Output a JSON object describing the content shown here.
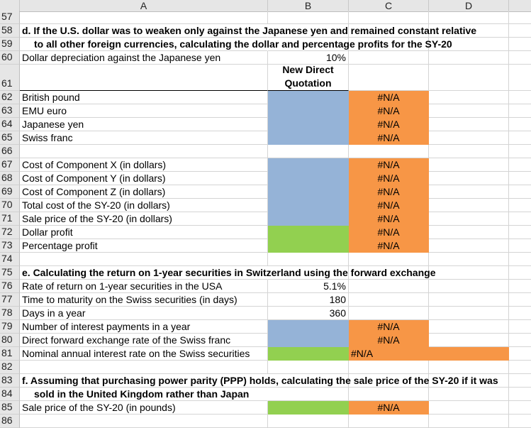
{
  "columns": [
    "A",
    "B",
    "C",
    "D"
  ],
  "rows": [
    {
      "n": "57"
    },
    {
      "n": "58",
      "a": "d.  If the U.S. dollar was to weaken only against the Japanese yen and remained constant relative",
      "bold": true
    },
    {
      "n": "59",
      "a": "to all other foreign currencies, calculating the dollar and percentage profits for the SY-20",
      "bold": true,
      "indent": true
    },
    {
      "n": "60",
      "a": "Dollar depreciation against the Japanese yen",
      "b": "10%"
    },
    {
      "n": "61",
      "b": "New Direct Quotation",
      "tall": true,
      "bheader": true
    },
    {
      "n": "62",
      "a": "British pound",
      "bf": "blue",
      "c": "#N/A",
      "cf": "orange"
    },
    {
      "n": "63",
      "a": "EMU euro",
      "bf": "blue",
      "c": "#N/A",
      "cf": "orange"
    },
    {
      "n": "64",
      "a": "Japanese yen",
      "bf": "blue",
      "c": "#N/A",
      "cf": "orange"
    },
    {
      "n": "65",
      "a": "Swiss franc",
      "bf": "blue",
      "c": "#N/A",
      "cf": "orange"
    },
    {
      "n": "66"
    },
    {
      "n": "67",
      "a": "Cost of Component X (in dollars)",
      "bf": "blue",
      "c": "#N/A",
      "cf": "orange"
    },
    {
      "n": "68",
      "a": "Cost of Component Y (in dollars)",
      "bf": "blue",
      "c": "#N/A",
      "cf": "orange"
    },
    {
      "n": "69",
      "a": "Cost of Component Z (in dollars)",
      "bf": "blue",
      "c": "#N/A",
      "cf": "orange"
    },
    {
      "n": "70",
      "a": "Total cost of the SY-20 (in dollars)",
      "bf": "blue",
      "c": "#N/A",
      "cf": "orange"
    },
    {
      "n": "71",
      "a": "Sale price of the SY-20 (in dollars)",
      "bf": "blue",
      "c": "#N/A",
      "cf": "orange"
    },
    {
      "n": "72",
      "a": "Dollar profit",
      "bf": "green",
      "c": "#N/A",
      "cf": "orange"
    },
    {
      "n": "73",
      "a": "Percentage profit",
      "bf": "green",
      "c": "#N/A",
      "cf": "orange"
    },
    {
      "n": "74"
    },
    {
      "n": "75",
      "a": "e.  Calculating the return on 1-year securities in Switzerland using the forward exchange",
      "bold": true
    },
    {
      "n": "76",
      "a": "Rate of return on 1-year securities in the USA",
      "b": "5.1%"
    },
    {
      "n": "77",
      "a": "Time to maturity on the Swiss securities (in days)",
      "b": "180"
    },
    {
      "n": "78",
      "a": "Days in a year",
      "b": "360"
    },
    {
      "n": "79",
      "a": "Number of interest payments in a year",
      "bf": "blue",
      "c": "#N/A",
      "cf": "orange"
    },
    {
      "n": "80",
      "a": "Direct forward exchange rate of the Swiss franc",
      "bf": "blue",
      "c": "#N/A",
      "cf": "orange"
    },
    {
      "n": "81",
      "a": "Nominal annual interest rate on the Swiss securities",
      "bf": "green",
      "c": "#N/A",
      "cf": "orange",
      "cleft": true,
      "df": "orange"
    },
    {
      "n": "82"
    },
    {
      "n": "83",
      "a": "f.  Assuming that purchasing power parity (PPP) holds, calculating the sale price of the SY-20 if it was",
      "bold": true
    },
    {
      "n": "84",
      "a": "sold in the United Kingdom rather than Japan",
      "bold": true,
      "indent": true
    },
    {
      "n": "85",
      "a": "Sale price of the SY-20 (in pounds)",
      "bf": "green",
      "c": "#N/A",
      "cf": "orange"
    },
    {
      "n": "86"
    }
  ]
}
